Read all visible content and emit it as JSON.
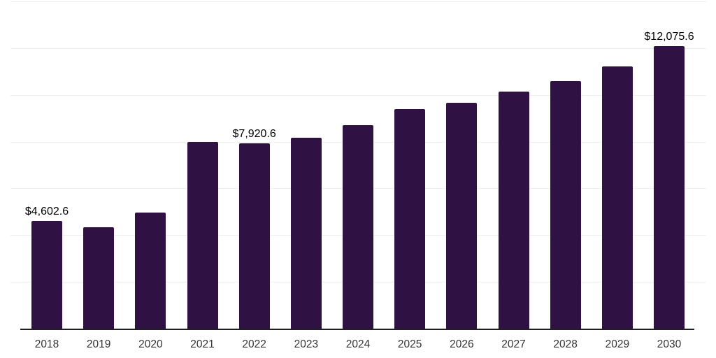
{
  "chart_data": {
    "type": "bar",
    "title": "",
    "xlabel": "",
    "ylabel": "",
    "categories": [
      "2018",
      "2019",
      "2020",
      "2021",
      "2022",
      "2023",
      "2024",
      "2025",
      "2026",
      "2027",
      "2028",
      "2029",
      "2030"
    ],
    "values": [
      4602.6,
      4345,
      4970,
      7990,
      7920.6,
      8165,
      8715,
      9390,
      9650,
      10145,
      10580,
      11210,
      12075.6
    ],
    "data_labels": {
      "0": "$4,602.6",
      "4": "$7,920.6",
      "12": "$12,075.6"
    },
    "ylim": [
      0,
      14000
    ],
    "gridline_interval": 2000,
    "grid": true,
    "legend": false,
    "bar_color": "#301143",
    "axis_line_color": "#1f1f1f",
    "gridline_color": "#efefef",
    "data_label_color": "#000000",
    "tick_label_color": "#333333"
  }
}
